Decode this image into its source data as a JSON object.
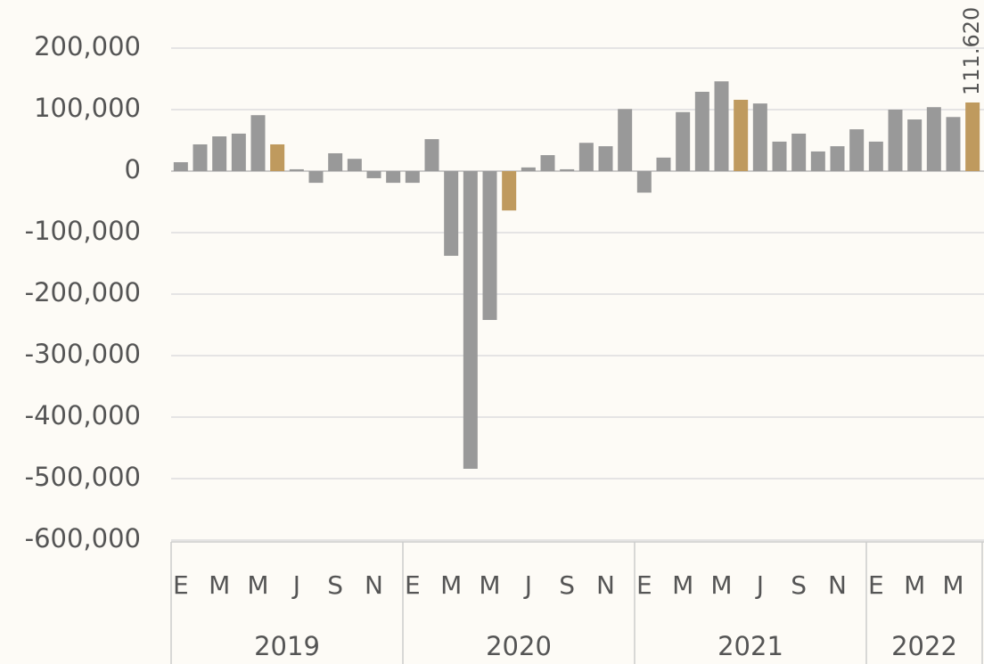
{
  "chart_data": {
    "type": "bar",
    "categories": [
      "E",
      null,
      "M",
      null,
      "M",
      null,
      "J",
      null,
      "S",
      null,
      "N",
      null,
      "E",
      null,
      "M",
      null,
      "M",
      null,
      "J",
      null,
      "S",
      null,
      "N",
      null,
      "E",
      null,
      "M",
      null,
      "M",
      null,
      "J",
      null,
      "S",
      null,
      "N",
      null,
      "E",
      null,
      "M",
      null,
      "M",
      null
    ],
    "groups": [
      {
        "label": "2019",
        "span": 12
      },
      {
        "label": "2020",
        "span": 12
      },
      {
        "label": "2021",
        "span": 12
      },
      {
        "label": "2022",
        "span": 6
      }
    ],
    "values": [
      14500,
      43500,
      56500,
      61000,
      91000,
      43500,
      3000,
      -19000,
      29000,
      20000,
      -11500,
      -19000,
      -19000,
      52000,
      -137700,
      -484000,
      -242000,
      -64000,
      6000,
      26000,
      3000,
      46000,
      40500,
      101000,
      -35000,
      22000,
      96000,
      129000,
      146000,
      116000,
      110000,
      48000,
      61000,
      32000,
      40500,
      68000,
      48000,
      100000,
      84000,
      104000,
      88000,
      111620
    ],
    "value_labels": [
      null,
      null,
      null,
      null,
      null,
      null,
      null,
      null,
      null,
      null,
      null,
      null,
      null,
      null,
      null,
      null,
      null,
      null,
      null,
      null,
      null,
      null,
      null,
      null,
      null,
      null,
      null,
      null,
      null,
      null,
      null,
      null,
      null,
      null,
      null,
      null,
      null,
      null,
      null,
      null,
      null,
      "111.620"
    ],
    "colors": [
      "#999999",
      "#999999",
      "#999999",
      "#999999",
      "#999999",
      "#bf9a5e",
      "#999999",
      "#999999",
      "#999999",
      "#999999",
      "#999999",
      "#999999",
      "#999999",
      "#999999",
      "#999999",
      "#999999",
      "#999999",
      "#bf9a5e",
      "#999999",
      "#999999",
      "#999999",
      "#999999",
      "#999999",
      "#999999",
      "#999999",
      "#999999",
      "#999999",
      "#999999",
      "#999999",
      "#bf9a5e",
      "#999999",
      "#999999",
      "#999999",
      "#999999",
      "#999999",
      "#999999",
      "#999999",
      "#999999",
      "#999999",
      "#999999",
      "#999999",
      "#bf9a5e"
    ],
    "ylim": [
      -600000,
      200000
    ],
    "yticks": [
      {
        "value": -600000,
        "label": "-600,000"
      },
      {
        "value": -500000,
        "label": "-500,000"
      },
      {
        "value": -400000,
        "label": "-400,000"
      },
      {
        "value": -300000,
        "label": "-300,000"
      },
      {
        "value": -200000,
        "label": "-200,000"
      },
      {
        "value": -100000,
        "label": "-100,000"
      },
      0,
      {
        "value": 100000,
        "label": "100,000"
      },
      {
        "value": 200000,
        "label": "200,000"
      }
    ],
    "grid": true
  }
}
